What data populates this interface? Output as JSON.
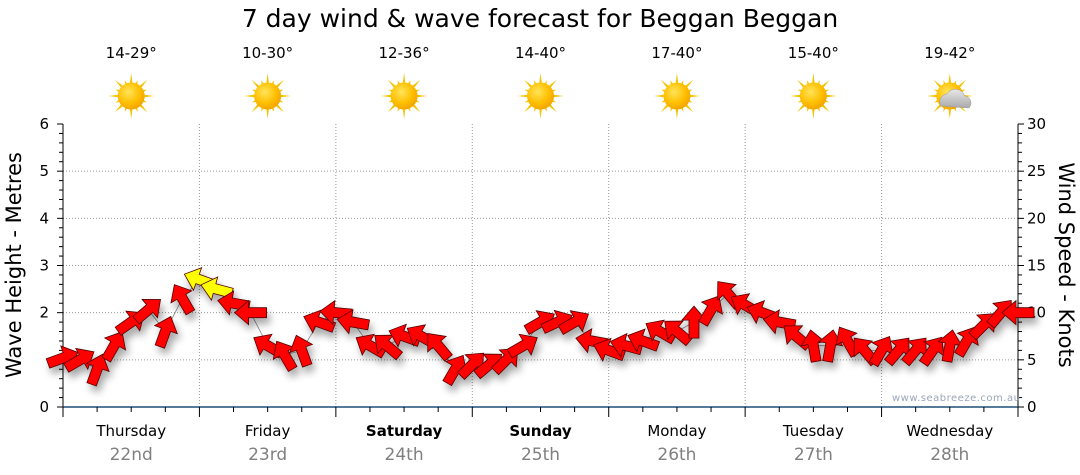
{
  "chart_data": {
    "type": "scatter",
    "title": "7 day wind & wave forecast for Beggan Beggan",
    "ylabel_left": "Wave Height - Metres",
    "ylabel_right": "Wind Speed - Knots",
    "ylim_left": [
      0,
      6
    ],
    "ylim_right": [
      0,
      30
    ],
    "yticks_left": [
      "0",
      "",
      "2",
      "3",
      "4",
      "5",
      "6"
    ],
    "yticks_right": [
      "0",
      "5",
      "10",
      "15",
      "20",
      "25",
      "30"
    ],
    "grid": true,
    "credit": "www.seabreeze.com.au",
    "days": [
      {
        "name": "Thursday",
        "date": "22nd",
        "temp": "14-29°",
        "icon": "sun-icon",
        "bold": false
      },
      {
        "name": "Friday",
        "date": "23rd",
        "temp": "10-30°",
        "icon": "sun-icon",
        "bold": false
      },
      {
        "name": "Saturday",
        "date": "24th",
        "temp": "12-36°",
        "icon": "sun-icon",
        "bold": true
      },
      {
        "name": "Sunday",
        "date": "25th",
        "temp": "14-40°",
        "icon": "sun-icon",
        "bold": true
      },
      {
        "name": "Monday",
        "date": "26th",
        "temp": "17-40°",
        "icon": "sun-icon",
        "bold": false
      },
      {
        "name": "Tuesday",
        "date": "27th",
        "temp": "15-40°",
        "icon": "sun-icon",
        "bold": false
      },
      {
        "name": "Wednesday",
        "date": "28th",
        "temp": "19-42°",
        "icon": "sun-cloud-icon",
        "bold": false
      }
    ],
    "wind_interval_hours": 3,
    "wind_speed_knots": [
      5.2,
      5.0,
      4.0,
      6.5,
      9.0,
      10.3,
      8.0,
      11.5,
      13.5,
      12.5,
      11.0,
      10.0,
      6.5,
      5.5,
      6.0,
      9.0,
      10.0,
      9.0,
      6.5,
      6.5,
      7.5,
      7.5,
      6.5,
      4.0,
      4.5,
      4.5,
      5.0,
      6.5,
      9.0,
      9.0,
      9.0,
      7.0,
      6.0,
      6.5,
      7.0,
      8.0,
      8.0,
      9.0,
      10.3,
      12.0,
      10.8,
      10.0,
      9.0,
      7.5,
      6.5,
      6.5,
      7.0,
      6.0,
      6.0,
      6.0,
      6.0,
      6.0,
      6.5,
      7.0,
      8.7,
      10.0,
      10.0
    ],
    "wind_arrow_heading_deg": [
      20,
      30,
      70,
      60,
      35,
      40,
      70,
      120,
      160,
      165,
      170,
      180,
      150,
      120,
      110,
      160,
      175,
      170,
      150,
      140,
      160,
      150,
      130,
      60,
      45,
      40,
      45,
      30,
      30,
      25,
      30,
      170,
      160,
      165,
      160,
      150,
      140,
      90,
      60,
      130,
      150,
      160,
      170,
      140,
      100,
      80,
      120,
      130,
      60,
      50,
      50,
      55,
      80,
      60,
      45,
      50,
      180
    ],
    "colors": {
      "calm": "#ff0000",
      "strong": "#ffff00",
      "strong_threshold_knots": 12.5
    }
  }
}
